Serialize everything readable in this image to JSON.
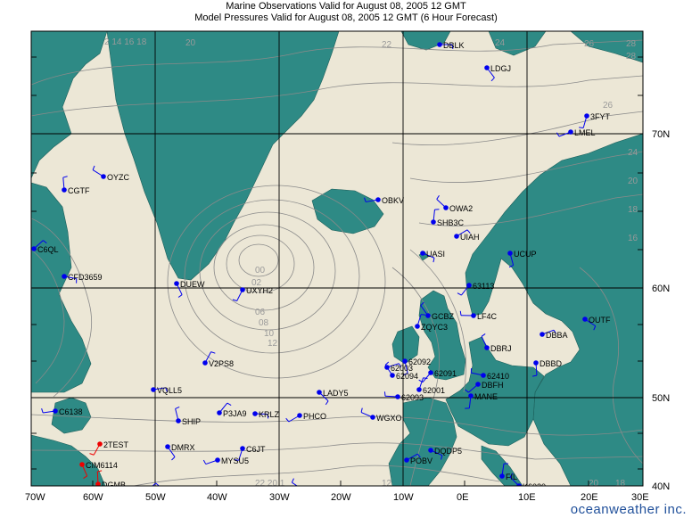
{
  "header": {
    "line1": "Marine Observations Valid for August 08, 2005 12 GMT",
    "line2": "Model Pressures Valid for August 08, 2005 12 GMT (6 Hour Forecast)"
  },
  "axes": {
    "lon_labels": [
      "70W",
      "60W",
      "50W",
      "40W",
      "30W",
      "20W",
      "10W",
      "0E",
      "10E",
      "20E",
      "30E"
    ],
    "lat_labels": [
      "70N",
      "60N",
      "50N",
      "40N"
    ]
  },
  "colors": {
    "ocean": "#ece7d6",
    "land": "#2e8a85",
    "isobar": "#8a8a8a",
    "grid": "#000000",
    "obs_blue": "#0000ee",
    "obs_red": "#ee0000"
  },
  "stations": [
    {
      "id": "DBLK",
      "color": "blue"
    },
    {
      "id": "LDGJ",
      "color": "blue"
    },
    {
      "id": "3FYT",
      "color": "blue"
    },
    {
      "id": "LMEL",
      "color": "blue"
    },
    {
      "id": "OYZC",
      "color": "blue"
    },
    {
      "id": "CGTF",
      "color": "blue"
    },
    {
      "id": "C6QL",
      "color": "blue"
    },
    {
      "id": "CFD3659",
      "color": "blue"
    },
    {
      "id": "DUEW",
      "color": "blue"
    },
    {
      "id": "UXYH2",
      "color": "blue"
    },
    {
      "id": "OBKV",
      "color": "blue"
    },
    {
      "id": "OWA2",
      "color": "blue"
    },
    {
      "id": "SHB3C",
      "color": "blue"
    },
    {
      "id": "UIAH",
      "color": "blue"
    },
    {
      "id": "UASI",
      "color": "blue"
    },
    {
      "id": "UCUP",
      "color": "blue"
    },
    {
      "id": "63113",
      "color": "blue"
    },
    {
      "id": "LF4C",
      "color": "blue"
    },
    {
      "id": "GCBZ",
      "color": "blue"
    },
    {
      "id": "ZQYC3",
      "color": "blue"
    },
    {
      "id": "DBBA",
      "color": "blue"
    },
    {
      "id": "OUTF",
      "color": "blue"
    },
    {
      "id": "DBBD",
      "color": "blue"
    },
    {
      "id": "DBFH",
      "color": "blue"
    },
    {
      "id": "62410",
      "color": "blue"
    },
    {
      "id": "DBRJ",
      "color": "blue"
    },
    {
      "id": "V2PS8",
      "color": "blue"
    },
    {
      "id": "VQLL5",
      "color": "blue"
    },
    {
      "id": "LADY5",
      "color": "blue"
    },
    {
      "id": "MANE",
      "color": "blue"
    },
    {
      "id": "PHCO",
      "color": "blue"
    },
    {
      "id": "WGXO",
      "color": "blue"
    },
    {
      "id": "SHIP",
      "color": "blue"
    },
    {
      "id": "P3JA9",
      "color": "blue"
    },
    {
      "id": "KRLZ",
      "color": "blue"
    },
    {
      "id": "DMRX",
      "color": "blue"
    },
    {
      "id": "C6JT",
      "color": "blue"
    },
    {
      "id": "MYSU5",
      "color": "blue"
    },
    {
      "id": "YJZ04",
      "color": "blue"
    },
    {
      "id": "DGMB",
      "color": "red"
    },
    {
      "id": "V7GY3",
      "color": "blue"
    },
    {
      "id": "SLCH",
      "color": "red"
    },
    {
      "id": "CIM6114",
      "color": "red"
    },
    {
      "id": "2TEST",
      "color": "red"
    },
    {
      "id": "C6138",
      "color": "blue"
    },
    {
      "id": "K6020",
      "color": "blue"
    },
    {
      "id": "FIL",
      "color": "blue"
    },
    {
      "id": "POBV",
      "color": "blue"
    },
    {
      "id": "DQDP5",
      "color": "blue"
    },
    {
      "id": "62092",
      "color": "blue"
    },
    {
      "id": "62091",
      "color": "blue"
    },
    {
      "id": "62093",
      "color": "blue"
    },
    {
      "id": "62094",
      "color": "blue"
    },
    {
      "id": "62001",
      "color": "blue"
    },
    {
      "id": "62003",
      "color": "blue"
    }
  ],
  "footer": {
    "brand": "oceanweather inc."
  }
}
